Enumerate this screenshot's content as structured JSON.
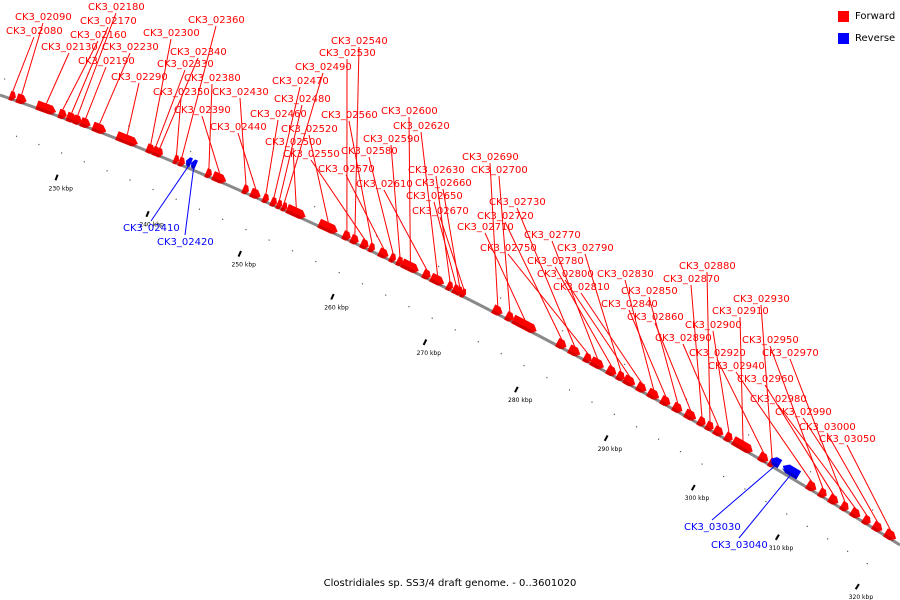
{
  "caption": "Clostridiales sp. SS3/4 draft genome. - 0..3601020",
  "legend": [
    {
      "label": "Forward",
      "color": "#ff0000"
    },
    {
      "label": "Reverse",
      "color": "#0000ff"
    }
  ],
  "colors": {
    "forward": "#ff0000",
    "reverse": "#0000ff",
    "backbone": "#8a8a8a",
    "tick": "#000000"
  },
  "ticks": [
    {
      "kbp": 230,
      "label": "230 kbp"
    },
    {
      "kbp": 240,
      "label": "240 kbp"
    },
    {
      "kbp": 250,
      "label": "250 kbp"
    },
    {
      "kbp": 260,
      "label": "260 kbp"
    },
    {
      "kbp": 270,
      "label": "270 kbp"
    },
    {
      "kbp": 280,
      "label": "280 kbp"
    },
    {
      "kbp": 290,
      "label": "290 kbp"
    },
    {
      "kbp": 300,
      "label": "300 kbp"
    },
    {
      "kbp": 310,
      "label": "310 kbp"
    },
    {
      "kbp": 320,
      "label": "320 kbp"
    }
  ],
  "genes": [
    {
      "id": "CK3_02080",
      "strand": "forward"
    },
    {
      "id": "CK3_02090",
      "strand": "forward"
    },
    {
      "id": "CK3_02130",
      "strand": "forward"
    },
    {
      "id": "CK3_02160",
      "strand": "forward"
    },
    {
      "id": "CK3_02170",
      "strand": "forward"
    },
    {
      "id": "CK3_02180",
      "strand": "forward"
    },
    {
      "id": "CK3_02190",
      "strand": "forward"
    },
    {
      "id": "CK3_02230",
      "strand": "forward"
    },
    {
      "id": "CK3_02290",
      "strand": "forward"
    },
    {
      "id": "CK3_02300",
      "strand": "forward"
    },
    {
      "id": "CK3_02330",
      "strand": "forward"
    },
    {
      "id": "CK3_02340",
      "strand": "forward"
    },
    {
      "id": "CK3_02350",
      "strand": "forward"
    },
    {
      "id": "CK3_02360",
      "strand": "forward"
    },
    {
      "id": "CK3_02380",
      "strand": "forward"
    },
    {
      "id": "CK3_02390",
      "strand": "forward"
    },
    {
      "id": "CK3_02410",
      "strand": "reverse"
    },
    {
      "id": "CK3_02420",
      "strand": "reverse"
    },
    {
      "id": "CK3_02430",
      "strand": "forward"
    },
    {
      "id": "CK3_02440",
      "strand": "forward"
    },
    {
      "id": "CK3_02460",
      "strand": "forward"
    },
    {
      "id": "CK3_02470",
      "strand": "forward"
    },
    {
      "id": "CK3_02480",
      "strand": "forward"
    },
    {
      "id": "CK3_02490",
      "strand": "forward"
    },
    {
      "id": "CK3_02500",
      "strand": "forward"
    },
    {
      "id": "CK3_02520",
      "strand": "forward"
    },
    {
      "id": "CK3_02530",
      "strand": "forward"
    },
    {
      "id": "CK3_02540",
      "strand": "forward"
    },
    {
      "id": "CK3_02550",
      "strand": "forward"
    },
    {
      "id": "CK3_02560",
      "strand": "forward"
    },
    {
      "id": "CK3_02570",
      "strand": "forward"
    },
    {
      "id": "CK3_02580",
      "strand": "forward"
    },
    {
      "id": "CK3_02590",
      "strand": "forward"
    },
    {
      "id": "CK3_02600",
      "strand": "forward"
    },
    {
      "id": "CK3_02610",
      "strand": "forward"
    },
    {
      "id": "CK3_02620",
      "strand": "forward"
    },
    {
      "id": "CK3_02630",
      "strand": "forward"
    },
    {
      "id": "CK3_02650",
      "strand": "forward"
    },
    {
      "id": "CK3_02660",
      "strand": "forward"
    },
    {
      "id": "CK3_02670",
      "strand": "forward"
    },
    {
      "id": "CK3_02690",
      "strand": "forward"
    },
    {
      "id": "CK3_02700",
      "strand": "forward"
    },
    {
      "id": "CK3_02710",
      "strand": "forward"
    },
    {
      "id": "CK3_02720",
      "strand": "forward"
    },
    {
      "id": "CK3_02730",
      "strand": "forward"
    },
    {
      "id": "CK3_02750",
      "strand": "forward"
    },
    {
      "id": "CK3_02770",
      "strand": "forward"
    },
    {
      "id": "CK3_02780",
      "strand": "forward"
    },
    {
      "id": "CK3_02790",
      "strand": "forward"
    },
    {
      "id": "CK3_02800",
      "strand": "forward"
    },
    {
      "id": "CK3_02810",
      "strand": "forward"
    },
    {
      "id": "CK3_02830",
      "strand": "forward"
    },
    {
      "id": "CK3_02840",
      "strand": "forward"
    },
    {
      "id": "CK3_02850",
      "strand": "forward"
    },
    {
      "id": "CK3_02860",
      "strand": "forward"
    },
    {
      "id": "CK3_02870",
      "strand": "forward"
    },
    {
      "id": "CK3_02880",
      "strand": "forward"
    },
    {
      "id": "CK3_02890",
      "strand": "forward"
    },
    {
      "id": "CK3_02900",
      "strand": "forward"
    },
    {
      "id": "CK3_02910",
      "strand": "forward"
    },
    {
      "id": "CK3_02920",
      "strand": "forward"
    },
    {
      "id": "CK3_02930",
      "strand": "forward"
    },
    {
      "id": "CK3_02940",
      "strand": "forward"
    },
    {
      "id": "CK3_02950",
      "strand": "forward"
    },
    {
      "id": "CK3_02960",
      "strand": "forward"
    },
    {
      "id": "CK3_02970",
      "strand": "forward"
    },
    {
      "id": "CK3_02980",
      "strand": "forward"
    },
    {
      "id": "CK3_02990",
      "strand": "forward"
    },
    {
      "id": "CK3_03000",
      "strand": "forward"
    },
    {
      "id": "CK3_03030",
      "strand": "reverse"
    },
    {
      "id": "CK3_03040",
      "strand": "reverse"
    },
    {
      "id": "CK3_03050",
      "strand": "forward"
    }
  ]
}
